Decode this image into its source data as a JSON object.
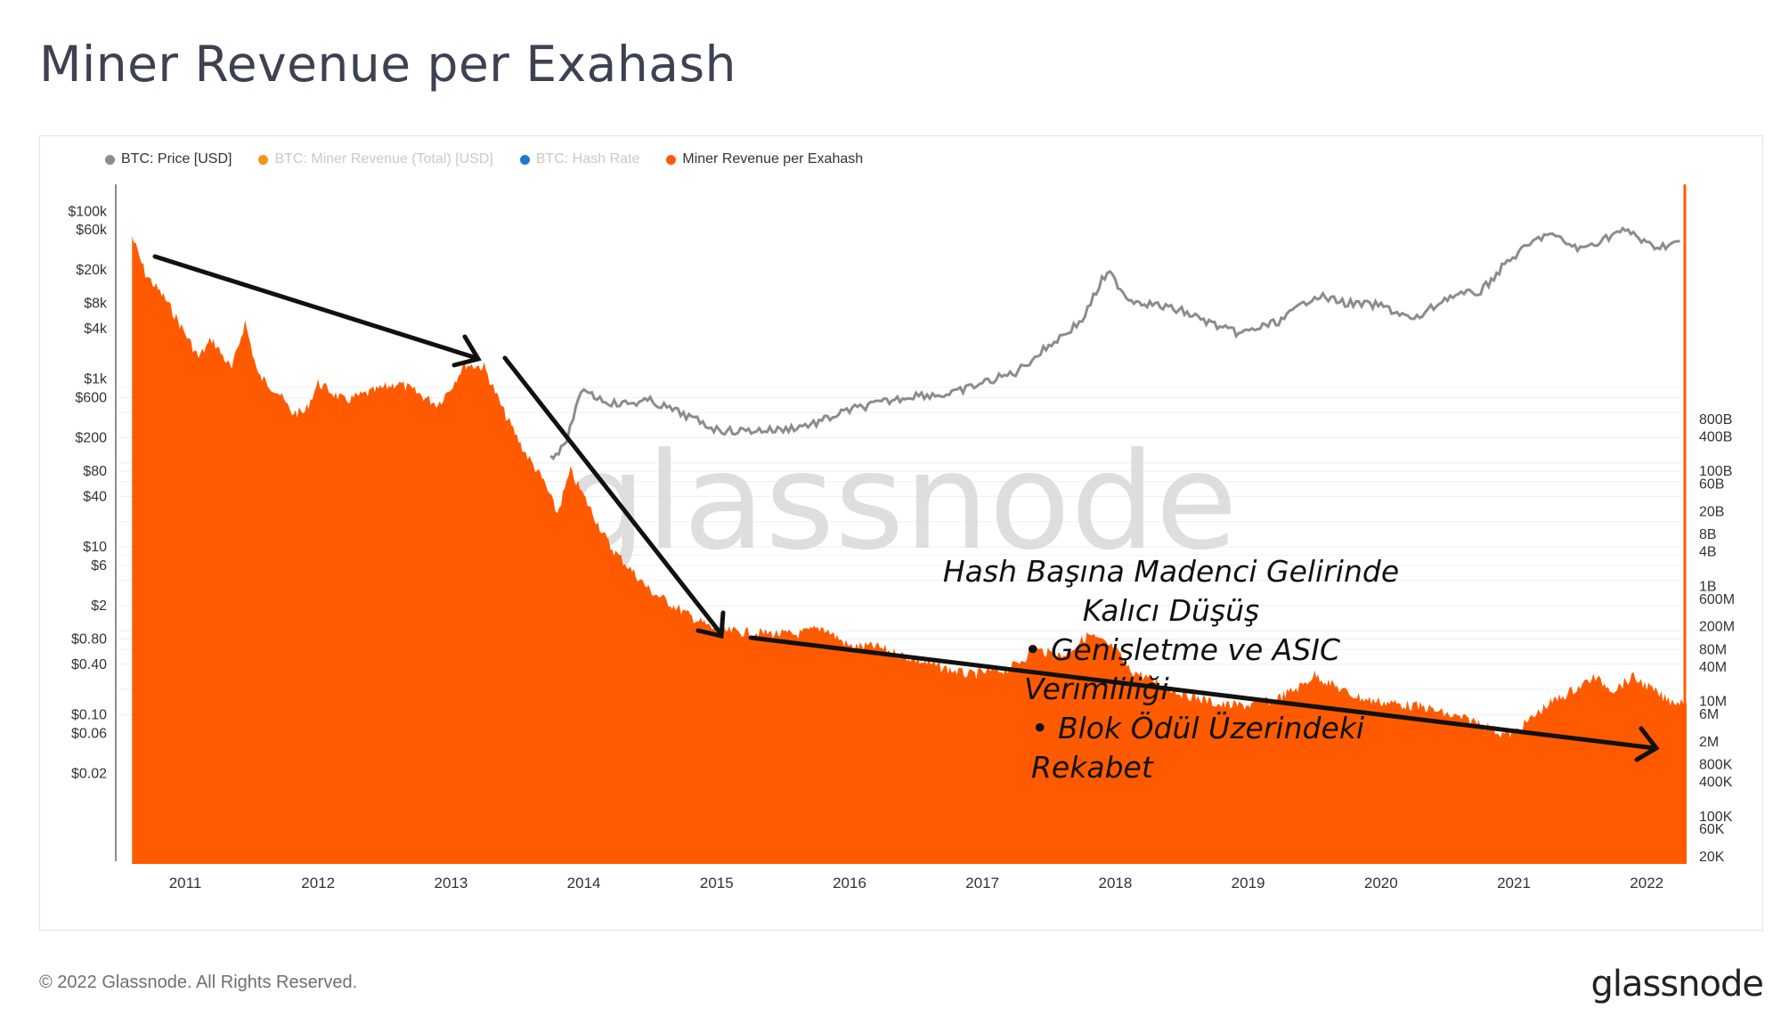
{
  "title": "Miner Revenue per Exahash",
  "legend": [
    {
      "label": "BTC: Price [USD]",
      "color": "#8c8c8c",
      "active": true
    },
    {
      "label": "BTC: Miner Revenue (Total) [USD]",
      "color": "#f7931a",
      "active": false
    },
    {
      "label": "BTC: Hash Rate",
      "color": "#1f78d1",
      "active": false
    },
    {
      "label": "Miner Revenue per Exahash",
      "color": "#ff5a00",
      "active": true
    }
  ],
  "chart_data": {
    "type": "area",
    "title": "Miner Revenue per Exahash",
    "x_ticks": [
      "2011",
      "2012",
      "2013",
      "2014",
      "2015",
      "2016",
      "2017",
      "2018",
      "2019",
      "2020",
      "2021",
      "2022"
    ],
    "x_range": [
      2010.56,
      2022.3
    ],
    "left_axis_ticks": [
      "$100k",
      "$60k",
      "$20k",
      "$8k",
      "$4k",
      "$1k",
      "$600",
      "$200",
      "$80",
      "$40",
      "$10",
      "$6",
      "$2",
      "$0.80",
      "$0.40",
      "$0.10",
      "$0.06",
      "$0.02"
    ],
    "left_axis_values": [
      100000,
      60000,
      20000,
      8000,
      4000,
      1000,
      600,
      200,
      80,
      40,
      10,
      6,
      2,
      0.8,
      0.4,
      0.1,
      0.06,
      0.02
    ],
    "right_axis_ticks": [
      "800B",
      "400B",
      "100B",
      "60B",
      "20B",
      "8B",
      "4B",
      "1B",
      "600M",
      "200M",
      "80M",
      "40M",
      "10M",
      "6M",
      "2M",
      "800K",
      "400K",
      "100K",
      "60K",
      "20K"
    ],
    "series": [
      {
        "name": "BTC: Price [USD]",
        "color": "#8c8c8c",
        "axis": "left",
        "x": [
          2013.75,
          2013.85,
          2013.92,
          2014.0,
          2014.1,
          2014.25,
          2014.5,
          2014.75,
          2015.0,
          2015.1,
          2015.5,
          2015.75,
          2016.0,
          2016.5,
          2016.75,
          2017.0,
          2017.25,
          2017.5,
          2017.75,
          2017.9,
          2017.96,
          2018.1,
          2018.5,
          2018.85,
          2018.95,
          2019.25,
          2019.5,
          2019.75,
          2020.0,
          2020.2,
          2020.25,
          2020.5,
          2020.75,
          2020.95,
          2021.1,
          2021.25,
          2021.5,
          2021.65,
          2021.8,
          2021.9,
          2022.0,
          2022.1,
          2022.25
        ],
        "values": [
          120,
          150,
          350,
          800,
          600,
          500,
          550,
          380,
          250,
          240,
          250,
          300,
          430,
          650,
          650,
          900,
          1200,
          2500,
          5000,
          15000,
          18000,
          9000,
          6500,
          3800,
          3500,
          5000,
          10000,
          8000,
          7500,
          5500,
          5000,
          9500,
          11000,
          25000,
          38000,
          55000,
          35000,
          45000,
          58000,
          55000,
          40000,
          38000,
          44000
        ]
      },
      {
        "name": "Miner Revenue per Exahash",
        "color": "#ff5a00",
        "axis": "left",
        "x": [
          2010.6,
          2010.7,
          2010.85,
          2011.0,
          2011.1,
          2011.2,
          2011.35,
          2011.45,
          2011.55,
          2011.7,
          2011.8,
          2011.9,
          2012.0,
          2012.2,
          2012.4,
          2012.6,
          2012.7,
          2012.9,
          2013.0,
          2013.1,
          2013.25,
          2013.4,
          2013.55,
          2013.7,
          2013.8,
          2013.9,
          2014.0,
          2014.2,
          2014.5,
          2014.8,
          2015.0,
          2015.3,
          2015.6,
          2015.8,
          2016.0,
          2016.2,
          2016.5,
          2016.65,
          2016.9,
          2017.2,
          2017.4,
          2017.6,
          2017.8,
          2018.0,
          2018.1,
          2018.3,
          2018.5,
          2018.8,
          2019.0,
          2019.2,
          2019.4,
          2019.5,
          2019.75,
          2019.9,
          2020.2,
          2020.35,
          2020.5,
          2020.75,
          2020.9,
          2021.0,
          2021.25,
          2021.5,
          2021.6,
          2021.75,
          2021.9,
          2022.0,
          2022.15,
          2022.3
        ],
        "values": [
          50000,
          18000,
          9000,
          3500,
          1800,
          3000,
          1300,
          4800,
          1100,
          700,
          400,
          400,
          900,
          550,
          700,
          900,
          750,
          500,
          800,
          1500,
          1400,
          400,
          140,
          60,
          25,
          80,
          40,
          10,
          3,
          1.5,
          1.0,
          0.95,
          0.9,
          1.1,
          0.65,
          0.65,
          0.45,
          0.38,
          0.3,
          0.35,
          0.6,
          0.5,
          0.9,
          0.6,
          0.35,
          0.25,
          0.18,
          0.13,
          0.13,
          0.15,
          0.22,
          0.3,
          0.18,
          0.15,
          0.13,
          0.12,
          0.1,
          0.08,
          0.06,
          0.06,
          0.13,
          0.22,
          0.28,
          0.2,
          0.28,
          0.22,
          0.15,
          0.14
        ]
      }
    ]
  },
  "annotation": {
    "heading": "Hash Başına Madenci Gelirinde Kalıcı Düşüş",
    "bullets": [
      "Genişletme ve ASIC Verimliliği",
      "Blok Ödül Üzerindeki Rekabet"
    ]
  },
  "watermark": "glassnode",
  "footer": "© 2022 Glassnode. All Rights Reserved.",
  "logo": "glassnode"
}
